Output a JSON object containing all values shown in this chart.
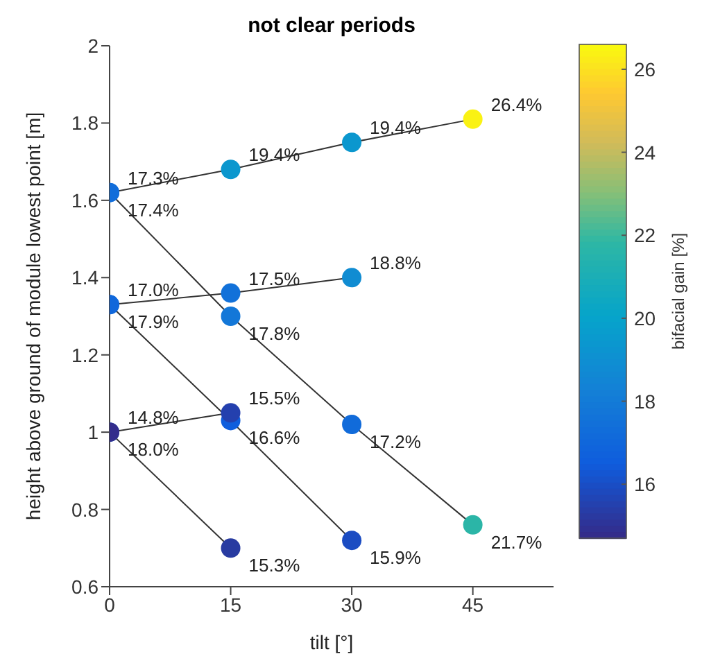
{
  "chart_data": {
    "type": "line",
    "title": "not clear periods",
    "xlabel": "tilt [°]",
    "ylabel": "height above ground of module lowest point [m]",
    "clabel": "bifacial gain [%]",
    "marker": "circle",
    "grid": false,
    "legend": false,
    "xlim": [
      0,
      55
    ],
    "xticks": [
      0,
      15,
      30,
      45
    ],
    "ylim": [
      0.6,
      2
    ],
    "yticks": [
      0.6,
      0.8,
      1,
      1.2,
      1.4,
      1.6,
      1.8,
      2
    ],
    "clim": [
      14.7,
      26.6
    ],
    "cticks": [
      16,
      18,
      20,
      22,
      24,
      26
    ],
    "series": [
      {
        "color": "#333333",
        "x": [
          0,
          15,
          30,
          45
        ],
        "values": [
          1.62,
          1.68,
          1.75,
          1.81
        ],
        "colors": [
          "#116dda",
          "#0b97ce",
          "#0b97ce",
          "#faf214"
        ]
      },
      {
        "color": "#333333",
        "x": [
          0,
          15,
          30
        ],
        "values": [
          1.33,
          1.36,
          1.4
        ],
        "colors": [
          "#1067db",
          "#1271d9",
          "#108cd2"
        ]
      },
      {
        "color": "#333333",
        "x": [
          0,
          15
        ],
        "values": [
          1.0,
          1.05
        ],
        "colors": [
          "#332d8c",
          "#2440ae"
        ]
      },
      {
        "color": "#333333",
        "x": [
          0,
          15,
          30,
          45
        ],
        "values": [
          1.62,
          1.3,
          1.02,
          0.76
        ],
        "colors": [
          "#126fd9",
          "#1377d8",
          "#116bda",
          "#2bb5a7"
        ]
      },
      {
        "color": "#333333",
        "x": [
          0,
          15,
          30
        ],
        "values": [
          1.33,
          1.03,
          0.72
        ],
        "colors": [
          "#1379d7",
          "#0f5edd",
          "#1b4cc2"
        ]
      },
      {
        "color": "#333333",
        "x": [
          0,
          15
        ],
        "values": [
          1.0,
          0.7
        ],
        "colors": [
          "#137bd7",
          "#283ba1"
        ]
      }
    ],
    "annotations": [
      {
        "text": "17.3%",
        "x": 0,
        "y": 1.62
      },
      {
        "text": "19.4%",
        "x": 15,
        "y": 1.68
      },
      {
        "text": "19.4%",
        "x": 30,
        "y": 1.75
      },
      {
        "text": "26.4%",
        "x": 45,
        "y": 1.81
      },
      {
        "text": "17.0%",
        "x": 0,
        "y": 1.33
      },
      {
        "text": "17.5%",
        "x": 15,
        "y": 1.36
      },
      {
        "text": "18.8%",
        "x": 30,
        "y": 1.4
      },
      {
        "text": "14.8%",
        "x": 0,
        "y": 1.0
      },
      {
        "text": "15.5%",
        "x": 15,
        "y": 1.05
      },
      {
        "text": "17.4%",
        "x": 0,
        "y": 1.62
      },
      {
        "text": "17.8%",
        "x": 15,
        "y": 1.3
      },
      {
        "text": "17.2%",
        "x": 30,
        "y": 1.02
      },
      {
        "text": "21.7%",
        "x": 45,
        "y": 0.76
      },
      {
        "text": "17.9%",
        "x": 0,
        "y": 1.33
      },
      {
        "text": "16.6%",
        "x": 15,
        "y": 1.03
      },
      {
        "text": "15.9%",
        "x": 30,
        "y": 0.72
      },
      {
        "text": "18.0%",
        "x": 0,
        "y": 1.0
      },
      {
        "text": "15.3%",
        "x": 15,
        "y": 0.7
      }
    ]
  }
}
